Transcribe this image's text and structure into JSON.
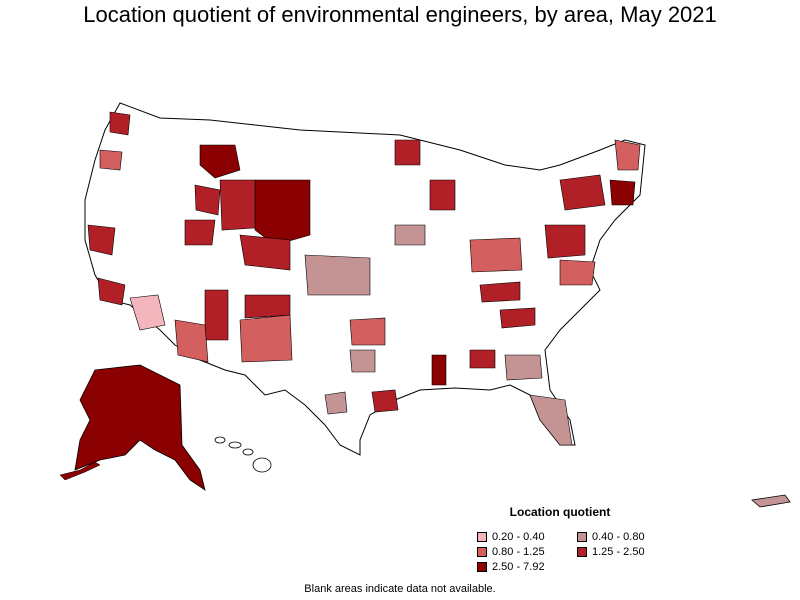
{
  "title": "Location quotient of environmental engineers, by area, May 2021",
  "legend": {
    "title": "Location quotient",
    "items": [
      {
        "label": "0.20 - 0.40",
        "color": "#f4b6bd"
      },
      {
        "label": "0.40 - 0.80",
        "color": "#c49494"
      },
      {
        "label": "0.80 - 1.25",
        "color": "#d35f5f"
      },
      {
        "label": "1.25 - 2.50",
        "color": "#b22027"
      },
      {
        "label": "2.50 - 7.92",
        "color": "#8b0000"
      }
    ]
  },
  "footnote": "Blank areas indicate data not available.",
  "colors": {
    "boundary": "#000000",
    "no_data": "#ffffff"
  }
}
